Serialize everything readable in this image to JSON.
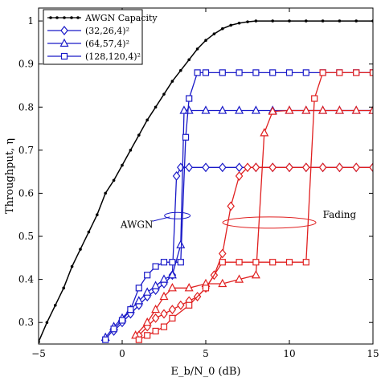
{
  "chart_data": {
    "type": "line",
    "xlabel": "E_b/N_0 (dB)",
    "ylabel": "Throughput, η",
    "xlim": [
      -5,
      15
    ],
    "ylim": [
      0.25,
      1.03
    ],
    "xticks": [
      "−5",
      "0",
      "5",
      "10",
      "15"
    ],
    "yticks": [
      "0.3",
      "0.4",
      "0.5",
      "0.6",
      "0.7",
      "0.8",
      "0.9",
      "1"
    ],
    "grid": false,
    "legend_position": "top-left",
    "legend": [
      {
        "label": "AWGN Capacity",
        "marker": "dot",
        "color": "#000000"
      },
      {
        "label": "(32,26,4)²",
        "marker": "diamond",
        "color": "#1a1ac8"
      },
      {
        "label": "(64,57,4)²",
        "marker": "triangle",
        "color": "#1a1ac8"
      },
      {
        "label": "(128,120,4)²",
        "marker": "square",
        "color": "#1a1ac8"
      }
    ],
    "annotations": [
      {
        "text": "AWGN",
        "color": "#1a1ac8"
      },
      {
        "text": "Fading",
        "color": "#e02020"
      }
    ],
    "series": [
      {
        "name": "AWGN Capacity",
        "color": "#000000",
        "marker": "dot",
        "x": [
          -5.0,
          -4.5,
          -4.0,
          -3.5,
          -3.0,
          -2.5,
          -2.0,
          -1.5,
          -1.0,
          -0.5,
          0.0,
          0.5,
          1.0,
          1.5,
          2.0,
          2.5,
          3.0,
          3.5,
          4.0,
          4.5,
          5.0,
          5.5,
          6.0,
          6.5,
          7.0,
          7.5,
          8.0,
          9.0,
          10.0,
          11.0,
          12.0,
          13.0,
          14.0,
          15.0
        ],
        "y": [
          0.255,
          0.3,
          0.34,
          0.38,
          0.43,
          0.47,
          0.51,
          0.55,
          0.6,
          0.63,
          0.665,
          0.7,
          0.735,
          0.77,
          0.8,
          0.83,
          0.86,
          0.885,
          0.91,
          0.935,
          0.955,
          0.97,
          0.982,
          0.99,
          0.995,
          0.998,
          1.0,
          1.0,
          1.0,
          1.0,
          1.0,
          1.0,
          1.0,
          1.0
        ]
      },
      {
        "name": "(32,26,4)² AWGN",
        "color": "#1a1ac8",
        "marker": "diamond",
        "x": [
          -0.5,
          0.0,
          0.5,
          1.0,
          1.5,
          2.0,
          2.5,
          3.0,
          3.25,
          3.5,
          4.0,
          5,
          6,
          7,
          8,
          9,
          10,
          11,
          12,
          13,
          14,
          15
        ],
        "y": [
          0.28,
          0.3,
          0.32,
          0.34,
          0.36,
          0.375,
          0.39,
          0.41,
          0.64,
          0.66,
          0.66,
          0.66,
          0.66,
          0.66,
          0.66,
          0.66,
          0.66,
          0.66,
          0.66,
          0.66,
          0.66,
          0.66
        ]
      },
      {
        "name": "(64,57,4)² AWGN",
        "color": "#1a1ac8",
        "marker": "triangle",
        "x": [
          -1.0,
          -0.5,
          0.0,
          0.5,
          1.0,
          1.5,
          2.0,
          2.5,
          3.0,
          3.5,
          3.7,
          4.0,
          5,
          6,
          7,
          8,
          9,
          10,
          11,
          12,
          13,
          14,
          15
        ],
        "y": [
          0.265,
          0.29,
          0.31,
          0.33,
          0.35,
          0.37,
          0.385,
          0.4,
          0.41,
          0.48,
          0.792,
          0.792,
          0.792,
          0.792,
          0.792,
          0.792,
          0.792,
          0.792,
          0.792,
          0.792,
          0.792,
          0.792,
          0.792
        ]
      },
      {
        "name": "(128,120,4)² AWGN",
        "color": "#1a1ac8",
        "marker": "square",
        "x": [
          -1.0,
          -0.5,
          0.0,
          0.5,
          1.0,
          1.5,
          2.0,
          2.5,
          3.0,
          3.5,
          3.8,
          4.0,
          4.5,
          5,
          6,
          7,
          8,
          9,
          10,
          11,
          12,
          13,
          14,
          15
        ],
        "y": [
          0.26,
          0.285,
          0.305,
          0.33,
          0.38,
          0.41,
          0.43,
          0.44,
          0.44,
          0.44,
          0.73,
          0.82,
          0.88,
          0.88,
          0.88,
          0.88,
          0.88,
          0.88,
          0.88,
          0.88,
          0.88,
          0.88,
          0.88,
          0.88
        ]
      },
      {
        "name": "(32,26,4)² Fading",
        "color": "#e02020",
        "marker": "diamond",
        "x": [
          1.0,
          1.5,
          2.0,
          2.5,
          3.0,
          3.5,
          4.0,
          4.5,
          5.0,
          5.5,
          6.0,
          6.5,
          7.0,
          7.5,
          8,
          9,
          10,
          11,
          12,
          13,
          14,
          15
        ],
        "y": [
          0.27,
          0.29,
          0.31,
          0.32,
          0.33,
          0.34,
          0.35,
          0.36,
          0.38,
          0.41,
          0.46,
          0.57,
          0.64,
          0.66,
          0.66,
          0.66,
          0.66,
          0.66,
          0.66,
          0.66,
          0.66,
          0.66
        ]
      },
      {
        "name": "(64,57,4)² Fading",
        "color": "#e02020",
        "marker": "triangle",
        "x": [
          0.8,
          1.5,
          2.0,
          2.5,
          3.0,
          4.0,
          5.0,
          6.0,
          7.0,
          8.0,
          8.5,
          9.0,
          10.0,
          11,
          12,
          13,
          14,
          15
        ],
        "y": [
          0.27,
          0.3,
          0.33,
          0.36,
          0.38,
          0.38,
          0.39,
          0.39,
          0.4,
          0.41,
          0.74,
          0.79,
          0.792,
          0.792,
          0.792,
          0.792,
          0.792,
          0.792
        ]
      },
      {
        "name": "(128,120,4)² Fading",
        "color": "#e02020",
        "marker": "square",
        "x": [
          1.0,
          1.5,
          2.0,
          2.5,
          3.0,
          4.0,
          5.0,
          6.0,
          7.0,
          8.0,
          9.0,
          10.0,
          11.0,
          11.5,
          12.0,
          13,
          14,
          15
        ],
        "y": [
          0.26,
          0.27,
          0.28,
          0.29,
          0.31,
          0.34,
          0.38,
          0.44,
          0.44,
          0.44,
          0.44,
          0.44,
          0.44,
          0.82,
          0.88,
          0.88,
          0.88,
          0.88
        ]
      }
    ]
  }
}
